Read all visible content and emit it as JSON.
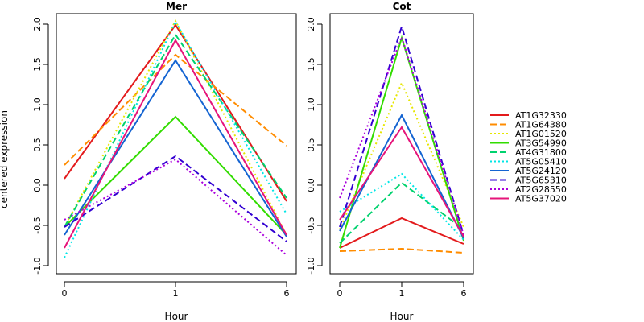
{
  "chart_data": [
    {
      "type": "line",
      "title": "Mer",
      "xlabel": "Hour",
      "ylabel": "centered expression",
      "x": [
        "0",
        "1",
        "6"
      ],
      "ylim": [
        -1.0,
        2.0
      ],
      "yticks": [
        "-1.0",
        "-0.5",
        "0.0",
        "0.5",
        "1.0",
        "1.5",
        "2.0"
      ],
      "series": [
        {
          "name": "AT1G32330",
          "values": [
            0.08,
            1.99,
            -0.2
          ]
        },
        {
          "name": "AT1G64380",
          "values": [
            0.25,
            1.62,
            0.49
          ]
        },
        {
          "name": "AT1G01520",
          "values": [
            -0.52,
            2.04,
            -0.62
          ]
        },
        {
          "name": "AT3G54990",
          "values": [
            -0.52,
            0.85,
            -0.62
          ]
        },
        {
          "name": "AT4G31800",
          "values": [
            -0.52,
            1.87,
            -0.16
          ]
        },
        {
          "name": "AT5G05410",
          "values": [
            -0.9,
            2.03,
            -0.36
          ]
        },
        {
          "name": "AT5G24120",
          "values": [
            -0.62,
            1.55,
            -0.64
          ]
        },
        {
          "name": "AT5G65310",
          "values": [
            -0.52,
            0.36,
            -0.7
          ]
        },
        {
          "name": "AT2G28550",
          "values": [
            -0.43,
            0.32,
            -0.87
          ]
        },
        {
          "name": "AT5G37020",
          "values": [
            -0.78,
            1.8,
            -0.62
          ]
        }
      ]
    },
    {
      "type": "line",
      "title": "Cot",
      "xlabel": "Hour",
      "x": [
        "0",
        "1",
        "6"
      ],
      "ylim": [
        -1.0,
        2.0
      ],
      "yticks": [
        "-1.0",
        "-0.5",
        "0.0",
        "0.5",
        "1.0",
        "1.5",
        "2.0"
      ],
      "series": [
        {
          "name": "AT1G32330",
          "values": [
            -0.78,
            -0.41,
            -0.73
          ]
        },
        {
          "name": "AT1G64380",
          "values": [
            -0.82,
            -0.79,
            -0.84
          ]
        },
        {
          "name": "AT1G01520",
          "values": [
            -0.55,
            1.27,
            -0.52
          ]
        },
        {
          "name": "AT3G54990",
          "values": [
            -0.78,
            1.83,
            -0.69
          ]
        },
        {
          "name": "AT4G31800",
          "values": [
            -0.72,
            0.03,
            -0.55
          ]
        },
        {
          "name": "AT5G05410",
          "values": [
            -0.33,
            0.14,
            -0.68
          ]
        },
        {
          "name": "AT5G24120",
          "values": [
            -0.57,
            0.87,
            -0.66
          ]
        },
        {
          "name": "AT5G65310",
          "values": [
            -0.52,
            1.97,
            -0.62
          ]
        },
        {
          "name": "AT2G28550",
          "values": [
            -0.16,
            1.84,
            -0.62
          ]
        },
        {
          "name": "AT5G37020",
          "values": [
            -0.43,
            0.72,
            -0.64
          ]
        }
      ]
    }
  ],
  "legend": {
    "placement": "right",
    "items": [
      {
        "label": "AT1G32330",
        "color": "#e31a1c",
        "dash": "solid"
      },
      {
        "label": "AT1G64380",
        "color": "#ff8c00",
        "dash": "dashed"
      },
      {
        "label": "AT1G01520",
        "color": "#e6e600",
        "dash": "dotted"
      },
      {
        "label": "AT3G54990",
        "color": "#32dc00",
        "dash": "solid"
      },
      {
        "label": "AT4G31800",
        "color": "#00d26e",
        "dash": "dashed"
      },
      {
        "label": "AT5G05410",
        "color": "#00e6e6",
        "dash": "dotted"
      },
      {
        "label": "AT5G24120",
        "color": "#1464d2",
        "dash": "solid"
      },
      {
        "label": "AT5G65310",
        "color": "#3200d2",
        "dash": "dashed"
      },
      {
        "label": "AT2G28550",
        "color": "#aa00dc",
        "dash": "dotted"
      },
      {
        "label": "AT5G37020",
        "color": "#e6147a",
        "dash": "solid"
      }
    ]
  }
}
